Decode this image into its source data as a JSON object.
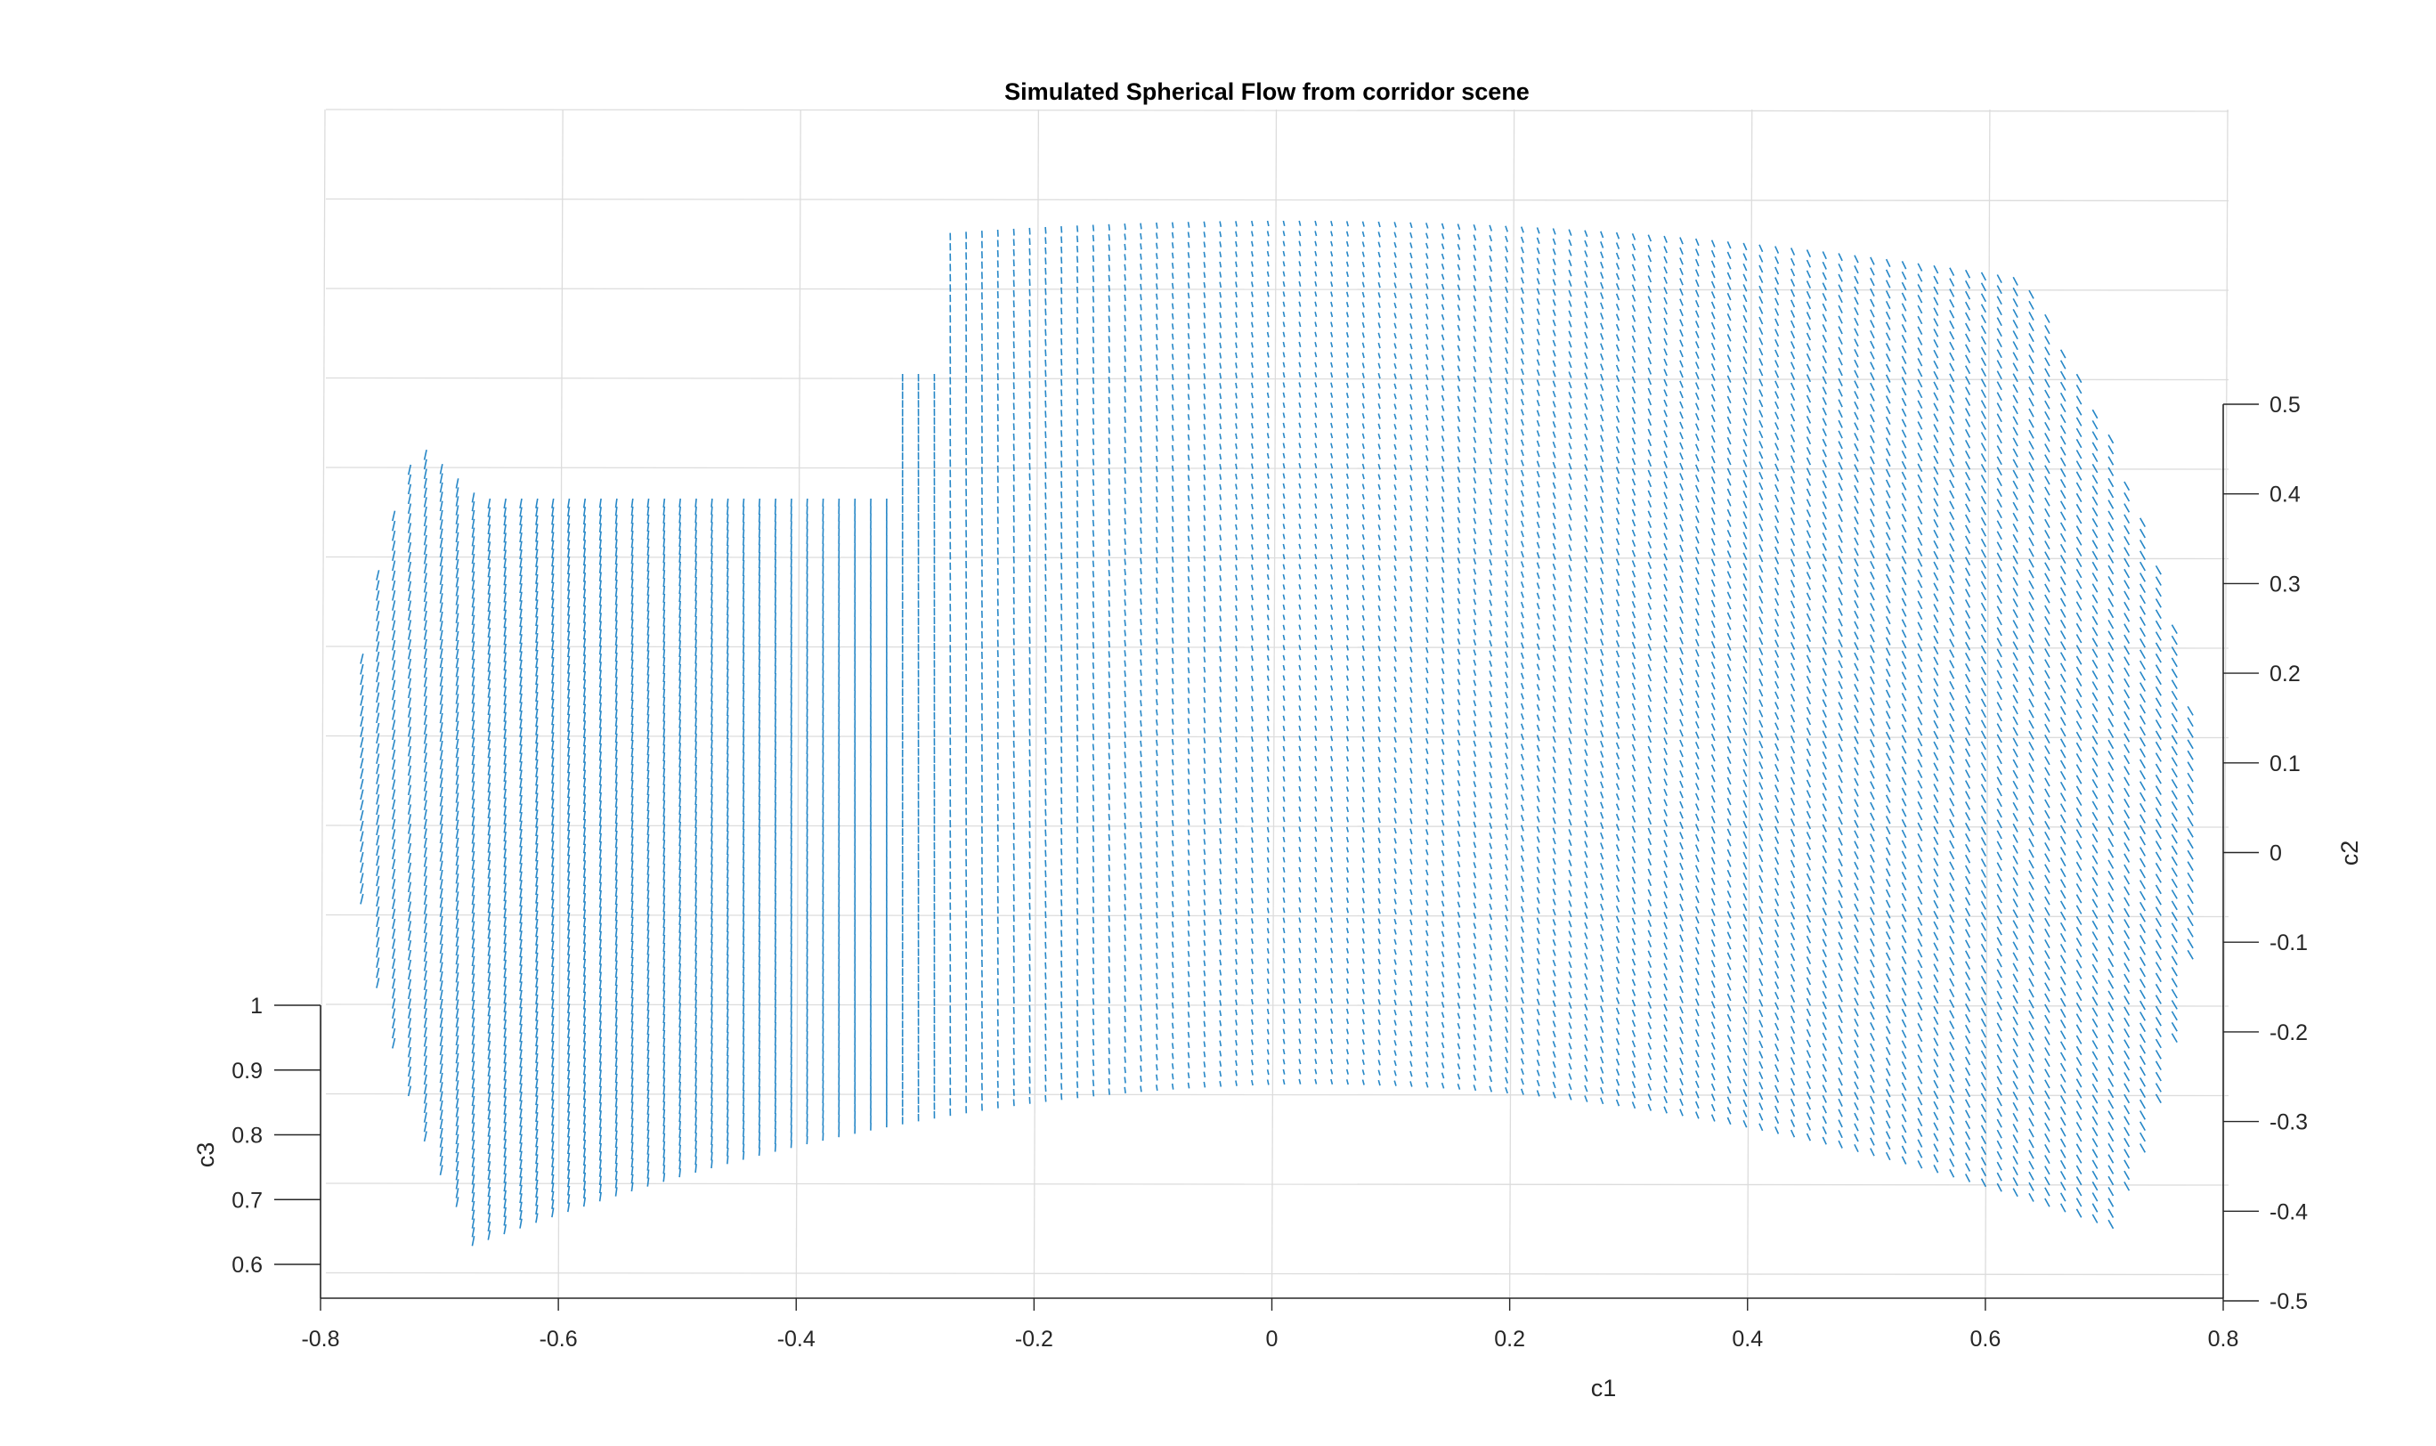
{
  "chart_data": {
    "type": "quiver3",
    "title": "Simulated Spherical Flow from corridor scene",
    "xlabel": "c1",
    "ylabel": "c2",
    "zlabel": "c3",
    "xlim": [
      -0.8,
      0.8
    ],
    "ylim": [
      -0.5,
      0.5
    ],
    "zlim": [
      0.55,
      1.0
    ],
    "xticks": [
      "-0.8",
      "-0.6",
      "-0.4",
      "-0.2",
      "0",
      "0.2",
      "0.4",
      "0.6",
      "0.8"
    ],
    "yticks": [
      "-0.5",
      "-0.4",
      "-0.3",
      "-0.2",
      "-0.1",
      "0",
      "0.1",
      "0.2",
      "0.3",
      "0.4",
      "0.5"
    ],
    "zticks": [
      "0.6",
      "0.7",
      "0.8",
      "0.9",
      "1"
    ],
    "grid": true,
    "series_color": "#0072BD",
    "surface": {
      "description": "unit-sphere cap of flow vectors; corridor-scene optical flow",
      "c1_range": [
        -0.78,
        0.78
      ],
      "c2_range": [
        -0.5,
        0.5
      ],
      "c3_range": [
        0.57,
        1.0
      ]
    }
  },
  "colors": {
    "background": "#ffffff",
    "grid": "#dcdcdc",
    "axis": "#262626",
    "arrows": "#0072BD"
  }
}
